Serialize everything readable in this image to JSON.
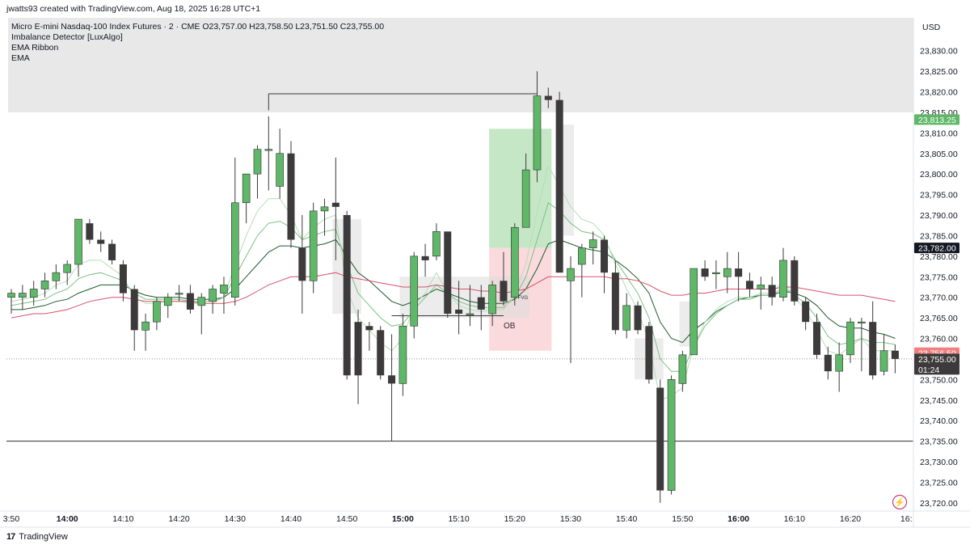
{
  "credit": "jwatts93 created with TradingView.com, Aug 18, 2025 16:28 UTC+1",
  "header": {
    "symbol_line": "Micro E-mini Nasdaq-100 Index Futures · 2 · CME  O23,757.00  H23,758.50  L23,751.50  C23,755.00",
    "indicators": [
      "Imbalance Detector [LuxAlgo]",
      "EMA Ribbon",
      "EMA"
    ]
  },
  "currency": "USD",
  "footer": {
    "brand": "TradingView",
    "logo": "17"
  },
  "icons": {
    "flash": "flash-icon",
    "logo": "tradingview-logo-icon"
  },
  "colors": {
    "up": "#5fb868",
    "down": "#3d3a3b",
    "ema": "#d9506b",
    "ribbon": [
      "#1e5a2c",
      "#3e8a4a",
      "#7cc283",
      "#b5deb8"
    ],
    "fvg_zone": "#bfe4c0",
    "ob_zone": "#f9d6d8",
    "premium_zone": "#e8e8e8"
  },
  "chart_data": {
    "type": "candlestick",
    "timeframe_minutes": 2,
    "y_range": [
      23718,
      23838
    ],
    "y_ticks": [
      23720,
      23725,
      23730,
      23735,
      23740,
      23745,
      23750,
      23755,
      23760,
      23765,
      23770,
      23775,
      23780,
      23785,
      23790,
      23795,
      23800,
      23805,
      23810,
      23815,
      23820,
      23825,
      23830
    ],
    "y_tick_labels": [
      "23,720.00",
      "23,725.00",
      "23,730.00",
      "23,735.00",
      "23,740.00",
      "23,745.00",
      "23,750.00",
      "23,755.00",
      "23,760.00",
      "23,765.00",
      "23,770.00",
      "23,775.00",
      "23,780.00",
      "23,785.00",
      "23,790.00",
      "23,795.00",
      "23,800.00",
      "23,805.00",
      "23,810.00",
      "23,815.00",
      "23,820.00",
      "23,825.00",
      "23,830.00"
    ],
    "x_labels": [
      {
        "t": "13:50",
        "text": "3:50",
        "bold": false
      },
      {
        "t": "14:00",
        "text": "14:00",
        "bold": true
      },
      {
        "t": "14:10",
        "text": "14:10",
        "bold": false
      },
      {
        "t": "14:20",
        "text": "14:20",
        "bold": false
      },
      {
        "t": "14:30",
        "text": "14:30",
        "bold": false
      },
      {
        "t": "14:40",
        "text": "14:40",
        "bold": false
      },
      {
        "t": "14:50",
        "text": "14:50",
        "bold": false
      },
      {
        "t": "15:00",
        "text": "15:00",
        "bold": true
      },
      {
        "t": "15:10",
        "text": "15:10",
        "bold": false
      },
      {
        "t": "15:20",
        "text": "15:20",
        "bold": false
      },
      {
        "t": "15:30",
        "text": "15:30",
        "bold": false
      },
      {
        "t": "15:40",
        "text": "15:40",
        "bold": false
      },
      {
        "t": "15:50",
        "text": "15:50",
        "bold": false
      },
      {
        "t": "16:00",
        "text": "16:00",
        "bold": true
      },
      {
        "t": "16:10",
        "text": "16:10",
        "bold": false
      },
      {
        "t": "16:20",
        "text": "16:20",
        "bold": false
      },
      {
        "t": "16:30",
        "text": "16:",
        "bold": false
      }
    ],
    "candles": [
      {
        "t": "13:50",
        "o": 23770,
        "h": 23772,
        "l": 23766,
        "c": 23771
      },
      {
        "t": "13:52",
        "o": 23770,
        "h": 23773,
        "l": 23767,
        "c": 23771
      },
      {
        "t": "13:54",
        "o": 23770,
        "h": 23774,
        "l": 23768,
        "c": 23772
      },
      {
        "t": "13:56",
        "o": 23772,
        "h": 23776,
        "l": 23770,
        "c": 23774
      },
      {
        "t": "13:58",
        "o": 23774,
        "h": 23778,
        "l": 23772,
        "c": 23776
      },
      {
        "t": "14:00",
        "o": 23776,
        "h": 23779,
        "l": 23773,
        "c": 23778
      },
      {
        "t": "14:02",
        "o": 23778,
        "h": 23789,
        "l": 23775,
        "c": 23789
      },
      {
        "t": "14:04",
        "o": 23788,
        "h": 23789,
        "l": 23783,
        "c": 23784
      },
      {
        "t": "14:06",
        "o": 23784,
        "h": 23786,
        "l": 23781,
        "c": 23783
      },
      {
        "t": "14:08",
        "o": 23783,
        "h": 23784,
        "l": 23778,
        "c": 23779
      },
      {
        "t": "14:10",
        "o": 23778,
        "h": 23779,
        "l": 23769,
        "c": 23771
      },
      {
        "t": "14:12",
        "o": 23772,
        "h": 23773,
        "l": 23757,
        "c": 23762
      },
      {
        "t": "14:14",
        "o": 23762,
        "h": 23766,
        "l": 23757,
        "c": 23764
      },
      {
        "t": "14:16",
        "o": 23764,
        "h": 23770,
        "l": 23762,
        "c": 23769
      },
      {
        "t": "14:18",
        "o": 23768,
        "h": 23771,
        "l": 23765,
        "c": 23770
      },
      {
        "t": "14:20",
        "o": 23771,
        "h": 23773,
        "l": 23769,
        "c": 23771
      },
      {
        "t": "14:22",
        "o": 23771,
        "h": 23773,
        "l": 23766,
        "c": 23767
      },
      {
        "t": "14:24",
        "o": 23768,
        "h": 23771,
        "l": 23761,
        "c": 23770
      },
      {
        "t": "14:26",
        "o": 23769,
        "h": 23773,
        "l": 23766,
        "c": 23772
      },
      {
        "t": "14:28",
        "o": 23771,
        "h": 23775,
        "l": 23766,
        "c": 23773
      },
      {
        "t": "14:30",
        "o": 23770,
        "h": 23804,
        "l": 23768,
        "c": 23793
      },
      {
        "t": "14:32",
        "o": 23793,
        "h": 23800,
        "l": 23788,
        "c": 23800
      },
      {
        "t": "14:34",
        "o": 23800,
        "h": 23807,
        "l": 23794,
        "c": 23806
      },
      {
        "t": "14:36",
        "o": 23806,
        "h": 23814,
        "l": 23796,
        "c": 23806
      },
      {
        "t": "14:38",
        "o": 23797,
        "h": 23811,
        "l": 23794,
        "c": 23805
      },
      {
        "t": "14:40",
        "o": 23805,
        "h": 23808,
        "l": 23782,
        "c": 23784
      },
      {
        "t": "14:42",
        "o": 23782,
        "h": 23790,
        "l": 23766,
        "c": 23774
      },
      {
        "t": "14:44",
        "o": 23774,
        "h": 23793,
        "l": 23771,
        "c": 23791
      },
      {
        "t": "14:46",
        "o": 23791,
        "h": 23794,
        "l": 23785,
        "c": 23792
      },
      {
        "t": "14:48",
        "o": 23793,
        "h": 23804,
        "l": 23779,
        "c": 23792
      },
      {
        "t": "14:50",
        "o": 23790,
        "h": 23791,
        "l": 23750,
        "c": 23751
      },
      {
        "t": "14:52",
        "o": 23764,
        "h": 23767,
        "l": 23744,
        "c": 23751
      },
      {
        "t": "14:54",
        "o": 23763,
        "h": 23764,
        "l": 23757,
        "c": 23762
      },
      {
        "t": "14:56",
        "o": 23762,
        "h": 23763,
        "l": 23750,
        "c": 23751
      },
      {
        "t": "14:58",
        "o": 23751,
        "h": 23761,
        "l": 23735,
        "c": 23749
      },
      {
        "t": "15:00",
        "o": 23749,
        "h": 23766,
        "l": 23746,
        "c": 23763
      },
      {
        "t": "15:02",
        "o": 23763,
        "h": 23781,
        "l": 23760,
        "c": 23780
      },
      {
        "t": "15:04",
        "o": 23780,
        "h": 23783,
        "l": 23775,
        "c": 23779
      },
      {
        "t": "15:06",
        "o": 23780,
        "h": 23788,
        "l": 23779,
        "c": 23786
      },
      {
        "t": "15:08",
        "o": 23786,
        "h": 23786,
        "l": 23765,
        "c": 23766
      },
      {
        "t": "15:10",
        "o": 23767,
        "h": 23774,
        "l": 23761,
        "c": 23766
      },
      {
        "t": "15:12",
        "o": 23766,
        "h": 23773,
        "l": 23763,
        "c": 23766
      },
      {
        "t": "15:14",
        "o": 23770,
        "h": 23773,
        "l": 23762,
        "c": 23767
      },
      {
        "t": "15:16",
        "o": 23766,
        "h": 23774,
        "l": 23763,
        "c": 23773
      },
      {
        "t": "15:18",
        "o": 23774,
        "h": 23781,
        "l": 23768,
        "c": 23769
      },
      {
        "t": "15:20",
        "o": 23770,
        "h": 23788,
        "l": 23768,
        "c": 23787
      },
      {
        "t": "15:22",
        "o": 23787,
        "h": 23805,
        "l": 23787,
        "c": 23801
      },
      {
        "t": "15:24",
        "o": 23801,
        "h": 23825,
        "l": 23798,
        "c": 23819
      },
      {
        "t": "15:26",
        "o": 23819,
        "h": 23821,
        "l": 23816,
        "c": 23818
      },
      {
        "t": "15:28",
        "o": 23818,
        "h": 23820,
        "l": 23776,
        "c": 23776
      },
      {
        "t": "15:30",
        "o": 23774,
        "h": 23780,
        "l": 23754,
        "c": 23777
      },
      {
        "t": "15:32",
        "o": 23778,
        "h": 23783,
        "l": 23770,
        "c": 23782
      },
      {
        "t": "15:34",
        "o": 23782,
        "h": 23786,
        "l": 23778,
        "c": 23784
      },
      {
        "t": "15:36",
        "o": 23784,
        "h": 23785,
        "l": 23771,
        "c": 23776
      },
      {
        "t": "15:38",
        "o": 23776,
        "h": 23779,
        "l": 23761,
        "c": 23762
      },
      {
        "t": "15:40",
        "o": 23762,
        "h": 23771,
        "l": 23760,
        "c": 23768
      },
      {
        "t": "15:42",
        "o": 23768,
        "h": 23769,
        "l": 23761,
        "c": 23762
      },
      {
        "t": "15:44",
        "o": 23763,
        "h": 23764,
        "l": 23749,
        "c": 23750
      },
      {
        "t": "15:46",
        "o": 23748,
        "h": 23750,
        "l": 23720,
        "c": 23723
      },
      {
        "t": "15:48",
        "o": 23723,
        "h": 23751,
        "l": 23722,
        "c": 23750
      },
      {
        "t": "15:50",
        "o": 23749,
        "h": 23757,
        "l": 23747,
        "c": 23756
      },
      {
        "t": "15:52",
        "o": 23756,
        "h": 23777,
        "l": 23756,
        "c": 23777
      },
      {
        "t": "15:54",
        "o": 23777,
        "h": 23779,
        "l": 23774,
        "c": 23775
      },
      {
        "t": "15:56",
        "o": 23776,
        "h": 23779,
        "l": 23772,
        "c": 23776
      },
      {
        "t": "15:58",
        "o": 23775,
        "h": 23781,
        "l": 23771,
        "c": 23777
      },
      {
        "t": "16:00",
        "o": 23777,
        "h": 23781,
        "l": 23769,
        "c": 23775
      },
      {
        "t": "16:02",
        "o": 23774,
        "h": 23776,
        "l": 23770,
        "c": 23772
      },
      {
        "t": "16:04",
        "o": 23772,
        "h": 23775,
        "l": 23767,
        "c": 23773
      },
      {
        "t": "16:06",
        "o": 23773,
        "h": 23775,
        "l": 23768,
        "c": 23770
      },
      {
        "t": "16:08",
        "o": 23770,
        "h": 23782,
        "l": 23769,
        "c": 23779
      },
      {
        "t": "16:10",
        "o": 23779,
        "h": 23780,
        "l": 23768,
        "c": 23769
      },
      {
        "t": "16:12",
        "o": 23769,
        "h": 23770,
        "l": 23762,
        "c": 23764
      },
      {
        "t": "16:14",
        "o": 23764,
        "h": 23766,
        "l": 23755,
        "c": 23756
      },
      {
        "t": "16:16",
        "o": 23756,
        "h": 23758,
        "l": 23750,
        "c": 23752
      },
      {
        "t": "16:18",
        "o": 23752,
        "h": 23759,
        "l": 23747,
        "c": 23756
      },
      {
        "t": "16:20",
        "o": 23756,
        "h": 23765,
        "l": 23754,
        "c": 23764
      },
      {
        "t": "16:22",
        "o": 23764,
        "h": 23765,
        "l": 23752,
        "c": 23764
      },
      {
        "t": "16:24",
        "o": 23764,
        "h": 23769,
        "l": 23750,
        "c": 23751
      },
      {
        "t": "16:26",
        "o": 23752,
        "h": 23761,
        "l": 23751,
        "c": 23757
      },
      {
        "t": "16:28",
        "o": 23757,
        "h": 23758.5,
        "l": 23751.5,
        "c": 23755
      }
    ],
    "ema": [
      23765,
      23765.5,
      23766,
      23766,
      23766.5,
      23767,
      23768,
      23769,
      23769.5,
      23770,
      23770,
      23769.5,
      23769,
      23769,
      23769,
      23769,
      23769,
      23768.5,
      23768.5,
      23768.5,
      23769,
      23770,
      23771.5,
      23773,
      23774,
      23775,
      23775,
      23775,
      23775.5,
      23776,
      23775,
      23774.5,
      23774,
      23773.5,
      23773,
      23772.5,
      23772.5,
      23772.5,
      23773,
      23772.5,
      23772,
      23772,
      23771.5,
      23771.5,
      23771,
      23771.5,
      23772,
      23773.5,
      23775,
      23775,
      23775,
      23775,
      23775,
      23775,
      23774.5,
      23774.5,
      23774,
      23773,
      23771.5,
      23770.5,
      23770.5,
      23771,
      23771,
      23771.5,
      23772,
      23772,
      23772,
      23772,
      23772,
      23772.5,
      23772.5,
      23772,
      23771.5,
      23771,
      23770.5,
      23770.5,
      23770.5,
      23770,
      23769.5,
      23769
    ],
    "ema_ribbon": [
      [
        23767,
        23767,
        23767.5,
        23768,
        23769,
        23769.5,
        23771,
        23772,
        23773,
        23773,
        23773,
        23771.5,
        23770.5,
        23770,
        23770,
        23770,
        23769.5,
        23769.5,
        23769.5,
        23770,
        23772,
        23775,
        23778,
        23781,
        23782.5,
        23782.5,
        23782,
        23782.5,
        23783,
        23784,
        23780,
        23776,
        23774,
        23771.5,
        23769,
        23768,
        23769,
        23770.5,
        23772,
        23771,
        23770,
        23769,
        23768.5,
        23768.5,
        23768.5,
        23769.5,
        23772,
        23777,
        23783,
        23784,
        23783,
        23782,
        23781.5,
        23781,
        23779,
        23777,
        23774.5,
        23771,
        23764,
        23760,
        23759,
        23762,
        23764,
        23766.5,
        23768,
        23769.5,
        23770,
        23770.5,
        23770.5,
        23771.5,
        23771,
        23770,
        23768,
        23765,
        23763,
        23762.5,
        23762.5,
        23761.5,
        23761,
        23760
      ],
      [
        23768,
        23768.5,
        23769,
        23769.5,
        23771,
        23772,
        23774.5,
        23775.5,
        23776,
        23775,
        23774,
        23771,
        23769.5,
        23769.5,
        23769.5,
        23769.5,
        23769,
        23769,
        23769,
        23770,
        23775,
        23780,
        23785,
        23788,
        23788.5,
        23787,
        23784,
        23785,
        23786,
        23786.5,
        23778,
        23771,
        23768,
        23765,
        23763,
        23763.5,
        23767,
        23770,
        23773,
        23771,
        23769,
        23768,
        23767.5,
        23767.5,
        23767.5,
        23770,
        23775,
        23784,
        23793,
        23791,
        23788,
        23786,
        23785.5,
        23784,
        23779,
        23775,
        23771,
        23765,
        23755,
        23752,
        23752,
        23758,
        23763,
        23766,
        23768,
        23769.5,
        23769.5,
        23770.5,
        23770.5,
        23772.5,
        23770.5,
        23768.5,
        23765,
        23760.5,
        23758.5,
        23759,
        23760,
        23759,
        23759,
        23758.5
      ],
      [
        23769,
        23769.5,
        23770,
        23771,
        23773,
        23774,
        23778,
        23779,
        23779,
        23777,
        23775,
        23770,
        23768.5,
        23768.5,
        23769,
        23769,
        23768.5,
        23768.5,
        23768.5,
        23770,
        23778,
        23785,
        23791,
        23794,
        23794,
        23790,
        23784,
        23787,
        23789,
        23790,
        23772,
        23765,
        23762,
        23759,
        23757,
        23760,
        23768,
        23771,
        23776,
        23771,
        23768,
        23767,
        23766.5,
        23767,
        23767,
        23771,
        23778,
        23791,
        23802,
        23797,
        23792,
        23789,
        23788,
        23785,
        23778,
        23772,
        23767,
        23759,
        23745,
        23746,
        23748,
        23758,
        23764,
        23767,
        23769,
        23770,
        23770,
        23771,
        23771,
        23774,
        23770,
        23767,
        23762,
        23757,
        23756,
        23758,
        23760,
        23757,
        23757,
        23757
      ]
    ],
    "zones": [
      {
        "kind": "premium",
        "x0": "13:50",
        "x1": "end",
        "y0": 23815,
        "y1": 23838
      },
      {
        "kind": "fvg_bull",
        "x0": "15:16",
        "x1": "15:26",
        "y0": 23782,
        "y1": 23811
      },
      {
        "kind": "ob_bear",
        "x0": "15:16",
        "x1": "15:26",
        "y0": 23757,
        "y1": 23782
      },
      {
        "kind": "imbalance",
        "x0": "15:00",
        "x1": "15:22",
        "y0": 23765,
        "y1": 23775
      },
      {
        "kind": "imbalance",
        "x0": "14:48",
        "x1": "14:52",
        "y0": 23766,
        "y1": 23789
      },
      {
        "kind": "imbalance",
        "x0": "15:28",
        "x1": "15:30",
        "y0": 23785,
        "y1": 23812
      },
      {
        "kind": "imbalance",
        "x0": "15:42",
        "x1": "15:46",
        "y0": 23750,
        "y1": 23760
      },
      {
        "kind": "imbalance",
        "x0": "15:50",
        "x1": "15:52",
        "y0": 23758,
        "y1": 23769
      }
    ],
    "levels": [
      {
        "kind": "swing_high",
        "x0": "14:36",
        "x1": "15:24",
        "y": 23819.5
      },
      {
        "kind": "ob_line",
        "x0": "14:58",
        "x1": "15:18",
        "y": 23765.5
      },
      {
        "kind": "support",
        "x0": "start",
        "x1": "end",
        "y": 23735
      }
    ],
    "annotations": [
      {
        "text": "OB",
        "t": "15:18",
        "y": 23762.5
      },
      {
        "text": "FVG",
        "t": "15:20",
        "y": 23769.5
      }
    ],
    "price_tags": [
      {
        "text": "23,813.25",
        "y": 23813.25,
        "bg": "#5fb868",
        "fg": "#ffffff"
      },
      {
        "text": "23,782.00",
        "y": 23782,
        "bg": "#131722",
        "fg": "#ffffff"
      },
      {
        "text": "23,756.50",
        "y": 23756.5,
        "bg": "#f08080",
        "fg": "#ffffff"
      },
      {
        "text": "23,755.00",
        "y": 23755,
        "bg": "#3d3a3b",
        "fg": "#ffffff",
        "sub": "01:24"
      }
    ],
    "last_price": 23755
  }
}
